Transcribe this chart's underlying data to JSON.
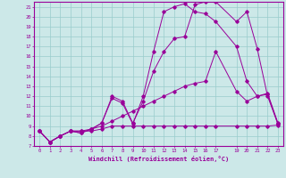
{
  "xlabel": "Windchill (Refroidissement éolien,°C)",
  "background_color": "#cce8e8",
  "line_color": "#990099",
  "grid_color": "#99cccc",
  "xlim": [
    -0.5,
    23.5
  ],
  "ylim": [
    7,
    21.5
  ],
  "xticks": [
    0,
    1,
    2,
    3,
    4,
    5,
    6,
    7,
    8,
    9,
    10,
    11,
    12,
    13,
    14,
    15,
    16,
    17,
    19,
    20,
    21,
    22,
    23
  ],
  "yticks": [
    7,
    8,
    9,
    10,
    11,
    12,
    13,
    14,
    15,
    16,
    17,
    18,
    19,
    20,
    21
  ],
  "lines": [
    {
      "x": [
        0,
        1,
        2,
        3,
        4,
        5,
        6,
        7,
        8,
        9,
        10,
        11,
        12,
        13,
        14,
        15,
        16,
        17,
        19,
        20,
        21,
        22,
        23
      ],
      "y": [
        8.5,
        7.4,
        8.0,
        8.5,
        8.5,
        8.5,
        8.7,
        9.0,
        9.0,
        9.0,
        9.0,
        9.0,
        9.0,
        9.0,
        9.0,
        9.0,
        9.0,
        9.0,
        9.0,
        9.0,
        9.0,
        9.0,
        9.1
      ]
    },
    {
      "x": [
        0,
        1,
        2,
        3,
        4,
        5,
        6,
        7,
        8,
        9,
        10,
        11,
        12,
        13,
        14,
        15,
        16,
        17,
        19,
        20,
        21,
        22,
        23
      ],
      "y": [
        8.5,
        7.4,
        8.0,
        8.5,
        8.5,
        8.7,
        9.0,
        9.5,
        10.0,
        10.5,
        11.0,
        11.5,
        12.0,
        12.5,
        13.0,
        13.3,
        13.5,
        16.5,
        12.5,
        11.5,
        12.0,
        12.2,
        9.2
      ]
    },
    {
      "x": [
        0,
        1,
        2,
        3,
        4,
        5,
        6,
        7,
        8,
        9,
        10,
        11,
        12,
        13,
        14,
        15,
        16,
        17,
        19,
        20,
        21,
        22,
        23
      ],
      "y": [
        8.5,
        7.4,
        8.0,
        8.5,
        8.3,
        8.7,
        9.3,
        12.0,
        11.5,
        9.3,
        11.5,
        14.5,
        16.5,
        17.8,
        18.0,
        21.2,
        21.5,
        21.5,
        19.5,
        20.5,
        16.8,
        12.0,
        9.2
      ]
    },
    {
      "x": [
        0,
        1,
        2,
        3,
        4,
        5,
        6,
        7,
        8,
        9,
        10,
        11,
        12,
        13,
        14,
        15,
        16,
        17,
        19,
        20,
        21,
        22,
        23
      ],
      "y": [
        8.5,
        7.4,
        8.0,
        8.5,
        8.3,
        8.7,
        9.3,
        11.8,
        11.3,
        9.2,
        12.0,
        16.5,
        20.5,
        21.0,
        21.3,
        20.5,
        20.3,
        19.5,
        17.0,
        13.5,
        12.0,
        12.3,
        9.3
      ]
    }
  ]
}
